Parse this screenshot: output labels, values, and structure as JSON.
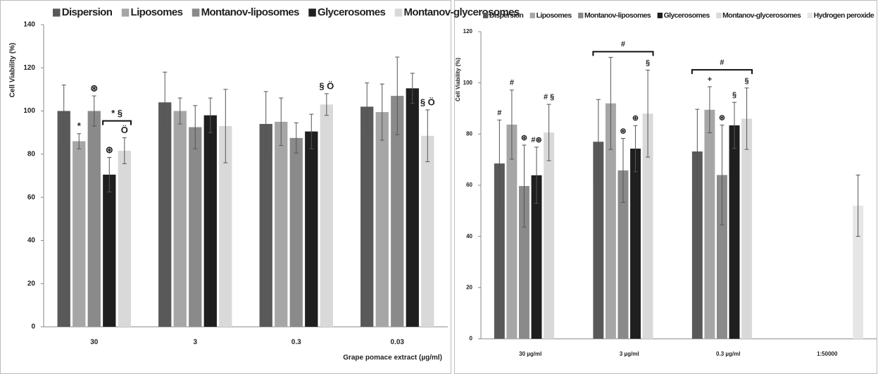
{
  "chart_data": [
    {
      "type": "bar",
      "legend": "top",
      "ylabel": "Cell Viability (%)",
      "xlabel": "Grape pomace extract (µg/ml)",
      "categories": [
        "30",
        "3",
        "0.3",
        "0.03"
      ],
      "ylim": [
        0,
        140
      ],
      "yticks": [
        0,
        20,
        40,
        60,
        80,
        100,
        120,
        140
      ],
      "series": [
        {
          "name": "Dispersion",
          "color": "#595959",
          "values": [
            100,
            104,
            94,
            102
          ],
          "errors": [
            12,
            14,
            15,
            11
          ],
          "annotations": [
            null,
            null,
            null,
            null
          ]
        },
        {
          "name": "Liposomes",
          "color": "#a6a6a6",
          "values": [
            86,
            100,
            95,
            99.5
          ],
          "errors": [
            3.5,
            6,
            11,
            13
          ],
          "annotations": [
            "*",
            null,
            null,
            null
          ]
        },
        {
          "name": "Montanov-liposomes",
          "color": "#8a8a8a",
          "values": [
            100,
            92.5,
            87.5,
            107
          ],
          "errors": [
            7,
            10,
            7,
            18
          ],
          "annotations": [
            "⊛",
            null,
            null,
            null
          ]
        },
        {
          "name": "Glycerosomes",
          "color": "#1f1f1f",
          "values": [
            70.5,
            98,
            90.5,
            110.5
          ],
          "errors": [
            8,
            8,
            8,
            7
          ],
          "annotations": [
            "⊛",
            null,
            null,
            null
          ]
        },
        {
          "name": "Montanov-glycerosomes",
          "color": "#d9d9d9",
          "values": [
            81.6,
            93,
            103,
            88.5
          ],
          "errors": [
            6,
            17,
            5,
            12
          ],
          "annotations": [
            "Ö",
            null,
            "§ Ö",
            "§ Ö"
          ]
        }
      ],
      "brackets": [
        {
          "label": "* §",
          "category": "30",
          "series": [
            "Glycerosomes",
            "Montanov-glycerosomes"
          ]
        }
      ]
    },
    {
      "type": "bar",
      "legend": "top",
      "ylabel": "Cell Viability (%)",
      "categories": [
        "30 µg/ml",
        "3 µg/ml",
        "0.3 µg/ml",
        "1:50000"
      ],
      "ylim": [
        0,
        120
      ],
      "yticks": [
        0,
        20,
        40,
        60,
        80,
        100,
        120
      ],
      "series": [
        {
          "name": "Dispersion",
          "color": "#595959",
          "values": [
            68.5,
            77,
            73.2,
            null
          ],
          "errors": [
            17,
            16.5,
            16.5,
            null
          ],
          "annotations": [
            "#",
            null,
            null,
            null
          ]
        },
        {
          "name": "Liposomes",
          "color": "#a6a6a6",
          "values": [
            83.7,
            92,
            89.5,
            null
          ],
          "errors": [
            13.5,
            18,
            9,
            null
          ],
          "annotations": [
            "#",
            null,
            "+",
            null
          ]
        },
        {
          "name": "Montanov-liposomes",
          "color": "#8a8a8a",
          "values": [
            59.7,
            65.8,
            64,
            null
          ],
          "errors": [
            16,
            12.5,
            19.5,
            null
          ],
          "annotations": [
            "⊛",
            "⊛",
            "⊛",
            null
          ]
        },
        {
          "name": "Glycerosomes",
          "color": "#1f1f1f",
          "values": [
            63.9,
            74.3,
            83.4,
            null
          ],
          "errors": [
            11,
            9,
            9,
            null
          ],
          "annotations": [
            "#⊛",
            "⊛",
            "§",
            null
          ]
        },
        {
          "name": "Montanov-glycerosomes",
          "color": "#d9d9d9",
          "values": [
            80.6,
            88,
            86,
            null
          ],
          "errors": [
            11,
            17,
            12,
            null
          ],
          "annotations": [
            "# §",
            "§",
            "§",
            null
          ]
        },
        {
          "name": "Hydrogen peroxide",
          "color": "#e6e6e6",
          "values": [
            null,
            null,
            null,
            52
          ],
          "errors": [
            null,
            null,
            null,
            12
          ],
          "annotations": [
            null,
            null,
            null,
            null
          ]
        }
      ],
      "brackets": [
        {
          "label": "#",
          "category": "3 µg/ml",
          "series": [
            "Dispersion",
            "Montanov-glycerosomes"
          ]
        },
        {
          "label": "#",
          "category": "0.3 µg/ml",
          "series": [
            "Dispersion",
            "Montanov-glycerosomes"
          ]
        }
      ]
    }
  ]
}
